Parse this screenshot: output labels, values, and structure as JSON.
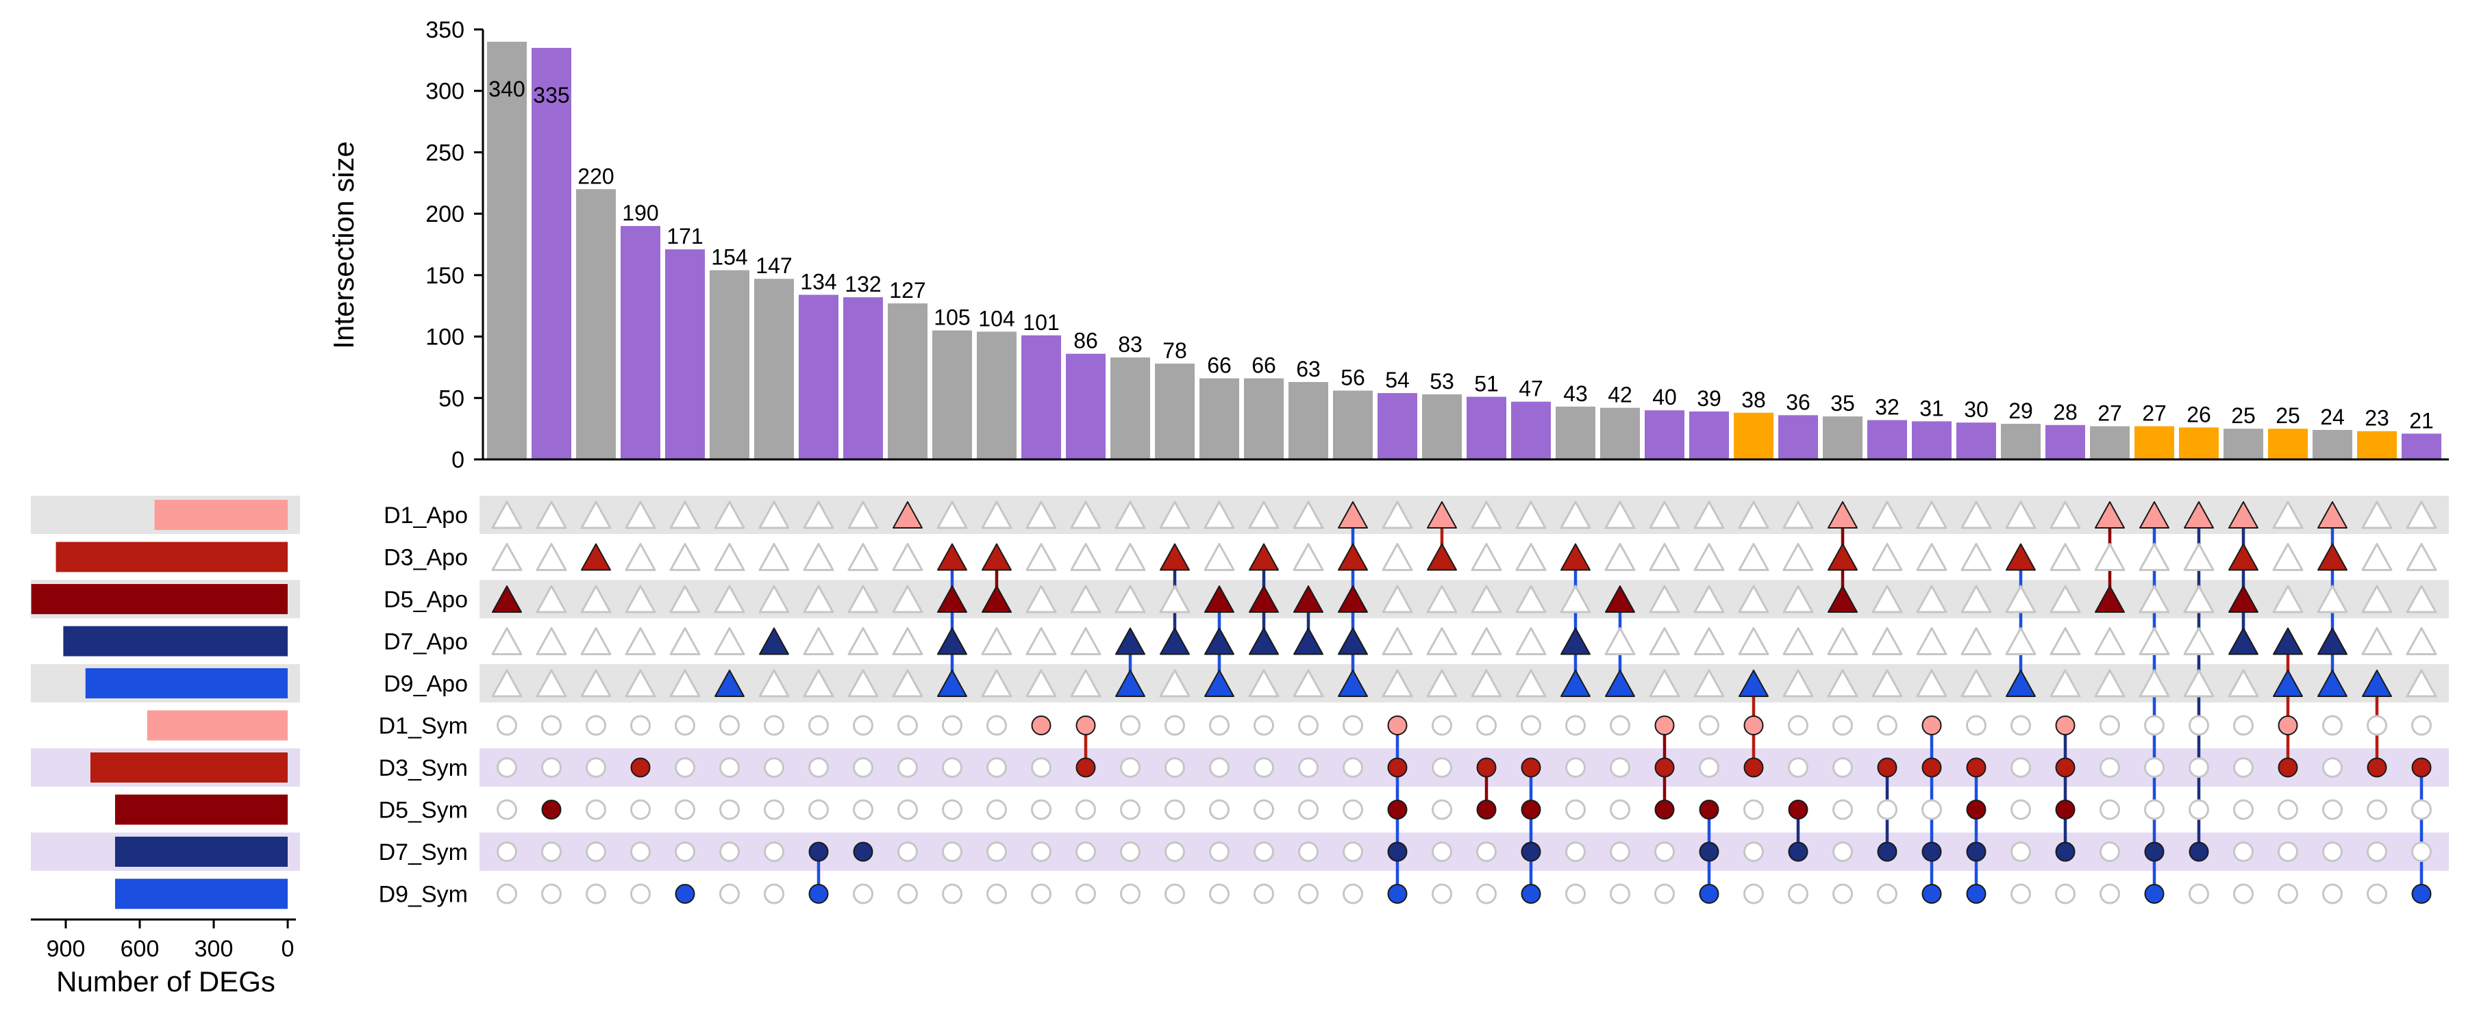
{
  "chart_data": {
    "type": "upset",
    "ylabel": "Intersection size",
    "ylim": [
      0,
      350
    ],
    "yticks": [
      0,
      50,
      100,
      150,
      200,
      250,
      300,
      350
    ],
    "set_size_xlabel": "Number of DEGs",
    "set_size_xlim": [
      0,
      1100
    ],
    "set_size_xticks": [
      900,
      600,
      300,
      0
    ],
    "set_size_tick_labels": [
      "900",
      "600",
      "300",
      "0"
    ],
    "sets": [
      {
        "name": "D1_Apo",
        "size": 540,
        "color": "#fc9d9a",
        "shape": "triangle",
        "band": "#e4e4e4"
      },
      {
        "name": "D3_Apo",
        "size": 940,
        "color": "#b61c0f",
        "shape": "triangle",
        "band": ""
      },
      {
        "name": "D5_Apo",
        "size": 1040,
        "color": "#8b0006",
        "shape": "triangle",
        "band": "#e4e4e4"
      },
      {
        "name": "D7_Apo",
        "size": 910,
        "color": "#1b2f7e",
        "shape": "triangle",
        "band": ""
      },
      {
        "name": "D9_Apo",
        "size": 820,
        "color": "#1a4fe0",
        "shape": "triangle",
        "band": "#e4e4e4"
      },
      {
        "name": "D1_Sym",
        "size": 570,
        "color": "#fc9d9a",
        "shape": "circle",
        "band": ""
      },
      {
        "name": "D3_Sym",
        "size": 800,
        "color": "#b61c0f",
        "shape": "circle",
        "band": "#e5dcf3"
      },
      {
        "name": "D5_Sym",
        "size": 700,
        "color": "#8b0006",
        "shape": "circle",
        "band": ""
      },
      {
        "name": "D7_Sym",
        "size": 700,
        "color": "#1b2f7e",
        "shape": "circle",
        "band": "#e5dcf3"
      },
      {
        "name": "D9_Sym",
        "size": 700,
        "color": "#1a4fe0",
        "shape": "circle",
        "band": ""
      }
    ],
    "intersections": [
      {
        "size": 340,
        "color": "#a6a6a6",
        "sets": [
          2
        ]
      },
      {
        "size": 335,
        "color": "#9b6bd3",
        "sets": [
          7
        ]
      },
      {
        "size": 220,
        "color": "#a6a6a6",
        "sets": [
          1
        ]
      },
      {
        "size": 190,
        "color": "#9b6bd3",
        "sets": [
          6
        ]
      },
      {
        "size": 171,
        "color": "#9b6bd3",
        "sets": [
          9
        ]
      },
      {
        "size": 154,
        "color": "#a6a6a6",
        "sets": [
          4
        ]
      },
      {
        "size": 147,
        "color": "#a6a6a6",
        "sets": [
          3
        ]
      },
      {
        "size": 134,
        "color": "#9b6bd3",
        "sets": [
          8,
          9
        ]
      },
      {
        "size": 132,
        "color": "#9b6bd3",
        "sets": [
          8
        ]
      },
      {
        "size": 127,
        "color": "#a6a6a6",
        "sets": [
          0
        ]
      },
      {
        "size": 105,
        "color": "#a6a6a6",
        "sets": [
          1,
          2,
          3,
          4
        ]
      },
      {
        "size": 104,
        "color": "#a6a6a6",
        "sets": [
          1,
          2
        ]
      },
      {
        "size": 101,
        "color": "#9b6bd3",
        "sets": [
          5
        ]
      },
      {
        "size": 86,
        "color": "#9b6bd3",
        "sets": [
          5,
          6
        ]
      },
      {
        "size": 83,
        "color": "#a6a6a6",
        "sets": [
          3,
          4
        ]
      },
      {
        "size": 78,
        "color": "#a6a6a6",
        "sets": [
          1,
          3
        ]
      },
      {
        "size": 66,
        "color": "#a6a6a6",
        "sets": [
          2,
          3,
          4
        ]
      },
      {
        "size": 66,
        "color": "#a6a6a6",
        "sets": [
          1,
          2,
          3
        ]
      },
      {
        "size": 63,
        "color": "#a6a6a6",
        "sets": [
          2,
          3
        ]
      },
      {
        "size": 56,
        "color": "#a6a6a6",
        "sets": [
          0,
          1,
          2,
          3,
          4
        ]
      },
      {
        "size": 54,
        "color": "#9b6bd3",
        "sets": [
          5,
          6,
          7,
          8,
          9
        ]
      },
      {
        "size": 53,
        "color": "#a6a6a6",
        "sets": [
          0,
          1
        ]
      },
      {
        "size": 51,
        "color": "#9b6bd3",
        "sets": [
          6,
          7
        ]
      },
      {
        "size": 47,
        "color": "#9b6bd3",
        "sets": [
          6,
          7,
          8,
          9
        ]
      },
      {
        "size": 43,
        "color": "#a6a6a6",
        "sets": [
          1,
          3,
          4
        ]
      },
      {
        "size": 42,
        "color": "#a6a6a6",
        "sets": [
          2,
          4
        ]
      },
      {
        "size": 40,
        "color": "#9b6bd3",
        "sets": [
          5,
          6,
          7
        ]
      },
      {
        "size": 39,
        "color": "#9b6bd3",
        "sets": [
          7,
          8,
          9
        ]
      },
      {
        "size": 38,
        "color": "#ffa500",
        "sets": [
          4,
          5,
          6
        ]
      },
      {
        "size": 36,
        "color": "#9b6bd3",
        "sets": [
          7,
          8
        ]
      },
      {
        "size": 35,
        "color": "#a6a6a6",
        "sets": [
          0,
          1,
          2
        ]
      },
      {
        "size": 32,
        "color": "#9b6bd3",
        "sets": [
          6,
          8
        ]
      },
      {
        "size": 31,
        "color": "#9b6bd3",
        "sets": [
          5,
          6,
          8,
          9
        ]
      },
      {
        "size": 30,
        "color": "#9b6bd3",
        "sets": [
          6,
          7,
          8,
          9
        ]
      },
      {
        "size": 29,
        "color": "#a6a6a6",
        "sets": [
          1,
          4
        ]
      },
      {
        "size": 28,
        "color": "#9b6bd3",
        "sets": [
          5,
          6,
          7,
          8
        ]
      },
      {
        "size": 27,
        "color": "#a6a6a6",
        "sets": [
          0,
          2
        ]
      },
      {
        "size": 27,
        "color": "#ffa500",
        "sets": [
          0,
          8,
          9
        ]
      },
      {
        "size": 26,
        "color": "#ffa500",
        "sets": [
          0,
          8
        ]
      },
      {
        "size": 25,
        "color": "#a6a6a6",
        "sets": [
          0,
          1,
          2,
          3
        ]
      },
      {
        "size": 25,
        "color": "#ffa500",
        "sets": [
          3,
          4,
          5,
          6
        ]
      },
      {
        "size": 24,
        "color": "#a6a6a6",
        "sets": [
          0,
          1,
          3,
          4
        ]
      },
      {
        "size": 23,
        "color": "#ffa500",
        "sets": [
          4,
          6
        ]
      },
      {
        "size": 21,
        "color": "#9b6bd3",
        "sets": [
          6,
          9
        ]
      }
    ]
  }
}
